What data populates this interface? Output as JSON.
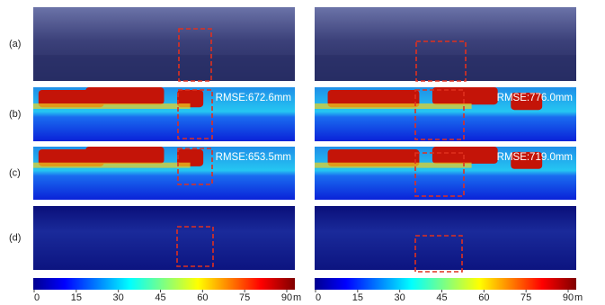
{
  "row_labels": [
    "(a)",
    "(b)",
    "(c)",
    "(d)"
  ],
  "panels": [
    {
      "rmse_b": "RMSE:672.6mm",
      "rmse_c": "RMSE:653.5mm"
    },
    {
      "rmse_b": "RMSE:776.0mm",
      "rmse_c": "RMSE:719.0mm"
    }
  ],
  "colorbar": {
    "range": [
      0,
      90
    ],
    "ticks": [
      0,
      15,
      30,
      45,
      60,
      75,
      90
    ],
    "unit": "m"
  }
}
